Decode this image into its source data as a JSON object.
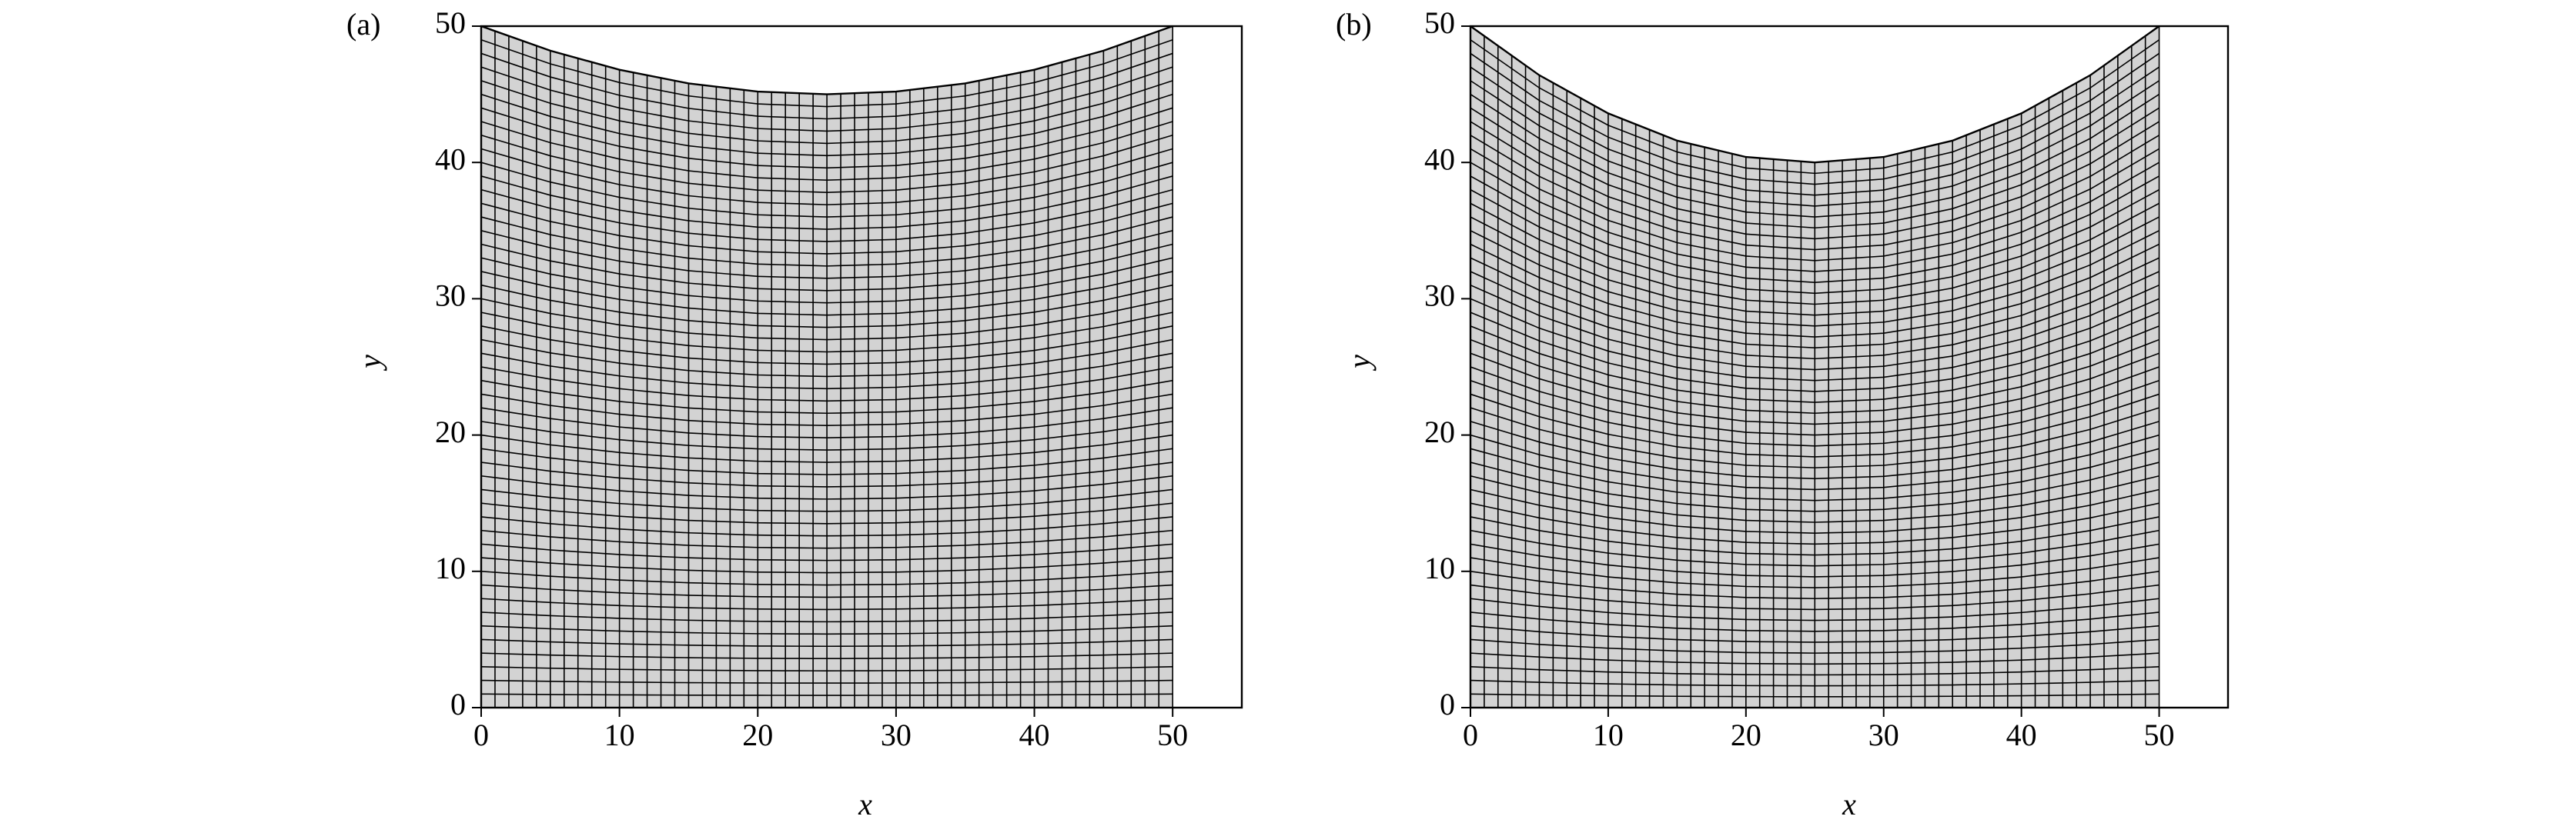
{
  "chart_data": [
    {
      "type": "mesh",
      "label": "(a)",
      "xlabel": "x",
      "ylabel": "y",
      "x": [
        0,
        5,
        10,
        15,
        20,
        25,
        30,
        35,
        40,
        45,
        50
      ],
      "values": [
        50,
        48.2,
        46.8,
        45.8,
        45.2,
        45,
        45.2,
        45.8,
        46.8,
        48.2,
        50
      ],
      "cells": [
        50,
        50
      ],
      "fill": "#d3d3d3",
      "color": "#000000",
      "xlim": [
        0,
        55
      ],
      "ylim": [
        0,
        50
      ],
      "xticks": [
        0,
        10,
        20,
        30,
        40,
        50
      ],
      "yticks": [
        0,
        10,
        20,
        30,
        40,
        50
      ]
    },
    {
      "type": "mesh",
      "label": "(b)",
      "xlabel": "x",
      "ylabel": "y",
      "x": [
        0,
        5,
        10,
        15,
        20,
        25,
        30,
        35,
        40,
        45,
        50
      ],
      "values": [
        50,
        46.4,
        43.6,
        41.6,
        40.4,
        40,
        40.4,
        41.6,
        43.6,
        46.4,
        50
      ],
      "cells": [
        50,
        50
      ],
      "fill": "#d3d3d3",
      "color": "#000000",
      "xlim": [
        0,
        55
      ],
      "ylim": [
        0,
        50
      ],
      "xticks": [
        0,
        10,
        20,
        30,
        40,
        50
      ],
      "yticks": [
        0,
        10,
        20,
        30,
        40,
        50
      ]
    }
  ]
}
